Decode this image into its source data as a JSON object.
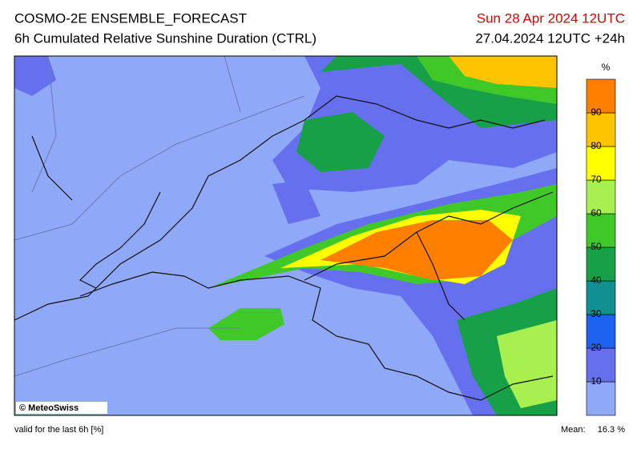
{
  "header": {
    "title": "COSMO-2E ENSEMBLE_FORECAST",
    "subtitle": "6h Cumulated Relative Sunshine Duration (CTRL)",
    "valid_time": "Sun 28 Apr 2024 12UTC",
    "run": "27.04.2024 12UTC +24h"
  },
  "map": {
    "credit": "© MeteoSwiss"
  },
  "colorbar": {
    "unit": "%",
    "ticks": [
      10,
      20,
      30,
      40,
      50,
      60,
      70,
      80,
      90
    ],
    "colors": [
      "#90a8f8",
      "#6670ee",
      "#1e62f0",
      "#109090",
      "#18a048",
      "#40c828",
      "#a8f050",
      "#ffff00",
      "#ffc400",
      "#ff8000"
    ]
  },
  "footer": {
    "validity": "valid for the last 6h [%]",
    "mean_label": "Mean:",
    "mean_value": "16.3 %"
  }
}
